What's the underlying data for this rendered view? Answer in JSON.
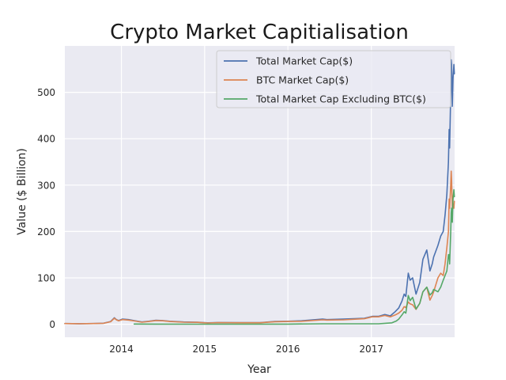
{
  "chart_data": {
    "type": "line",
    "title": "Crypto Market Capitialisation",
    "xlabel": "Year",
    "ylabel": "Value ($ Billion)",
    "x_ticks": [
      "2014",
      "2015",
      "2016",
      "2017"
    ],
    "y_ticks": [
      "0",
      "100",
      "200",
      "300",
      "400",
      "500"
    ],
    "xlim": [
      "2013-04-28",
      "2018-01-01"
    ],
    "ylim": [
      -28,
      600
    ],
    "grid": true,
    "legend_position": "top-right",
    "series": [
      {
        "name": "Total Market Cap($)",
        "color": "#4c72b0",
        "points": [
          [
            "2013-04-28",
            1.5
          ],
          [
            "2013-07-01",
            1.2
          ],
          [
            "2013-09-01",
            1.6
          ],
          [
            "2013-10-15",
            2.2
          ],
          [
            "2013-11-15",
            6
          ],
          [
            "2013-12-01",
            14
          ],
          [
            "2013-12-10",
            10
          ],
          [
            "2013-12-20",
            8
          ],
          [
            "2014-01-05",
            11
          ],
          [
            "2014-02-01",
            10
          ],
          [
            "2014-03-01",
            7.5
          ],
          [
            "2014-04-01",
            5
          ],
          [
            "2014-05-01",
            6.5
          ],
          [
            "2014-06-01",
            8.5
          ],
          [
            "2014-07-01",
            8
          ],
          [
            "2014-08-01",
            6.5
          ],
          [
            "2014-10-01",
            5
          ],
          [
            "2014-12-01",
            4.5
          ],
          [
            "2015-01-15",
            3
          ],
          [
            "2015-03-01",
            3.8
          ],
          [
            "2015-06-01",
            3.5
          ],
          [
            "2015-09-01",
            3.5
          ],
          [
            "2015-11-05",
            6
          ],
          [
            "2016-01-01",
            6.5
          ],
          [
            "2016-03-01",
            7.5
          ],
          [
            "2016-06-01",
            11
          ],
          [
            "2016-06-20",
            10
          ],
          [
            "2016-09-01",
            11
          ],
          [
            "2016-12-01",
            13
          ],
          [
            "2017-01-05",
            17
          ],
          [
            "2017-02-01",
            17
          ],
          [
            "2017-03-01",
            21
          ],
          [
            "2017-03-25",
            18
          ],
          [
            "2017-04-15",
            27
          ],
          [
            "2017-05-01",
            35
          ],
          [
            "2017-05-15",
            50
          ],
          [
            "2017-05-25",
            65
          ],
          [
            "2017-06-01",
            60
          ],
          [
            "2017-06-12",
            110
          ],
          [
            "2017-06-20",
            95
          ],
          [
            "2017-07-01",
            100
          ],
          [
            "2017-07-16",
            65
          ],
          [
            "2017-08-01",
            90
          ],
          [
            "2017-08-15",
            140
          ],
          [
            "2017-09-01",
            160
          ],
          [
            "2017-09-15",
            115
          ],
          [
            "2017-09-25",
            130
          ],
          [
            "2017-10-01",
            145
          ],
          [
            "2017-10-20",
            170
          ],
          [
            "2017-11-01",
            190
          ],
          [
            "2017-11-12",
            200
          ],
          [
            "2017-11-20",
            235
          ],
          [
            "2017-11-28",
            280
          ],
          [
            "2017-12-05",
            350
          ],
          [
            "2017-12-08",
            420
          ],
          [
            "2017-12-10",
            380
          ],
          [
            "2017-12-15",
            500
          ],
          [
            "2017-12-17",
            570
          ],
          [
            "2017-12-19",
            560
          ],
          [
            "2017-12-22",
            470
          ],
          [
            "2017-12-25",
            530
          ],
          [
            "2017-12-29",
            560
          ],
          [
            "2017-12-31",
            540
          ]
        ]
      },
      {
        "name": "BTC Market Cap($)",
        "color": "#dd8452",
        "points": [
          [
            "2013-04-28",
            1.5
          ],
          [
            "2013-07-01",
            1.2
          ],
          [
            "2013-09-01",
            1.5
          ],
          [
            "2013-10-15",
            2
          ],
          [
            "2013-11-15",
            5.5
          ],
          [
            "2013-12-01",
            13
          ],
          [
            "2013-12-10",
            9.5
          ],
          [
            "2013-12-20",
            7.5
          ],
          [
            "2014-01-05",
            10
          ],
          [
            "2014-02-01",
            9
          ],
          [
            "2014-03-01",
            7
          ],
          [
            "2014-04-01",
            4.5
          ],
          [
            "2014-05-01",
            6
          ],
          [
            "2014-06-01",
            8
          ],
          [
            "2014-07-01",
            7.5
          ],
          [
            "2014-08-01",
            6
          ],
          [
            "2014-10-01",
            4.5
          ],
          [
            "2014-12-01",
            4
          ],
          [
            "2015-01-15",
            2.8
          ],
          [
            "2015-03-01",
            3.5
          ],
          [
            "2015-06-01",
            3.3
          ],
          [
            "2015-09-01",
            3.3
          ],
          [
            "2015-11-05",
            5.5
          ],
          [
            "2016-01-01",
            6
          ],
          [
            "2016-03-01",
            6.5
          ],
          [
            "2016-06-01",
            9.5
          ],
          [
            "2016-06-20",
            9
          ],
          [
            "2016-09-01",
            9.5
          ],
          [
            "2016-12-01",
            12
          ],
          [
            "2017-01-05",
            16
          ],
          [
            "2017-02-01",
            16
          ],
          [
            "2017-03-01",
            19
          ],
          [
            "2017-03-25",
            16
          ],
          [
            "2017-04-15",
            20
          ],
          [
            "2017-05-01",
            24
          ],
          [
            "2017-05-15",
            30
          ],
          [
            "2017-05-25",
            38
          ],
          [
            "2017-06-01",
            36
          ],
          [
            "2017-06-12",
            48
          ],
          [
            "2017-06-20",
            44
          ],
          [
            "2017-07-01",
            42
          ],
          [
            "2017-07-16",
            32
          ],
          [
            "2017-08-01",
            45
          ],
          [
            "2017-08-15",
            70
          ],
          [
            "2017-09-01",
            80
          ],
          [
            "2017-09-15",
            52
          ],
          [
            "2017-09-25",
            62
          ],
          [
            "2017-10-01",
            70
          ],
          [
            "2017-10-20",
            100
          ],
          [
            "2017-11-01",
            110
          ],
          [
            "2017-11-12",
            105
          ],
          [
            "2017-11-20",
            130
          ],
          [
            "2017-11-28",
            165
          ],
          [
            "2017-12-05",
            200
          ],
          [
            "2017-12-08",
            270
          ],
          [
            "2017-12-10",
            250
          ],
          [
            "2017-12-15",
            300
          ],
          [
            "2017-12-17",
            330
          ],
          [
            "2017-12-19",
            310
          ],
          [
            "2017-12-22",
            250
          ],
          [
            "2017-12-25",
            260
          ],
          [
            "2017-12-29",
            250
          ],
          [
            "2017-12-31",
            265
          ]
        ]
      },
      {
        "name": "Total Market Cap Excluding BTC($)",
        "color": "#55a868",
        "points": [
          [
            "2014-02-26",
            0.5
          ],
          [
            "2014-06-01",
            0.3
          ],
          [
            "2015-01-01",
            0.2
          ],
          [
            "2016-01-01",
            0.3
          ],
          [
            "2016-06-01",
            1
          ],
          [
            "2016-12-01",
            1
          ],
          [
            "2017-02-01",
            1
          ],
          [
            "2017-03-01",
            2
          ],
          [
            "2017-04-01",
            3
          ],
          [
            "2017-04-20",
            7
          ],
          [
            "2017-05-01",
            11
          ],
          [
            "2017-05-15",
            20
          ],
          [
            "2017-05-25",
            27
          ],
          [
            "2017-06-01",
            24
          ],
          [
            "2017-06-12",
            62
          ],
          [
            "2017-06-20",
            51
          ],
          [
            "2017-07-01",
            58
          ],
          [
            "2017-07-16",
            33
          ],
          [
            "2017-08-01",
            45
          ],
          [
            "2017-08-15",
            70
          ],
          [
            "2017-09-01",
            80
          ],
          [
            "2017-09-15",
            63
          ],
          [
            "2017-09-25",
            68
          ],
          [
            "2017-10-01",
            75
          ],
          [
            "2017-10-20",
            70
          ],
          [
            "2017-11-01",
            80
          ],
          [
            "2017-11-12",
            95
          ],
          [
            "2017-11-20",
            105
          ],
          [
            "2017-11-28",
            115
          ],
          [
            "2017-12-05",
            150
          ],
          [
            "2017-12-08",
            150
          ],
          [
            "2017-12-10",
            130
          ],
          [
            "2017-12-15",
            200
          ],
          [
            "2017-12-17",
            240
          ],
          [
            "2017-12-19",
            250
          ],
          [
            "2017-12-22",
            220
          ],
          [
            "2017-12-25",
            270
          ],
          [
            "2017-12-29",
            290
          ],
          [
            "2017-12-31",
            275
          ]
        ]
      }
    ]
  }
}
